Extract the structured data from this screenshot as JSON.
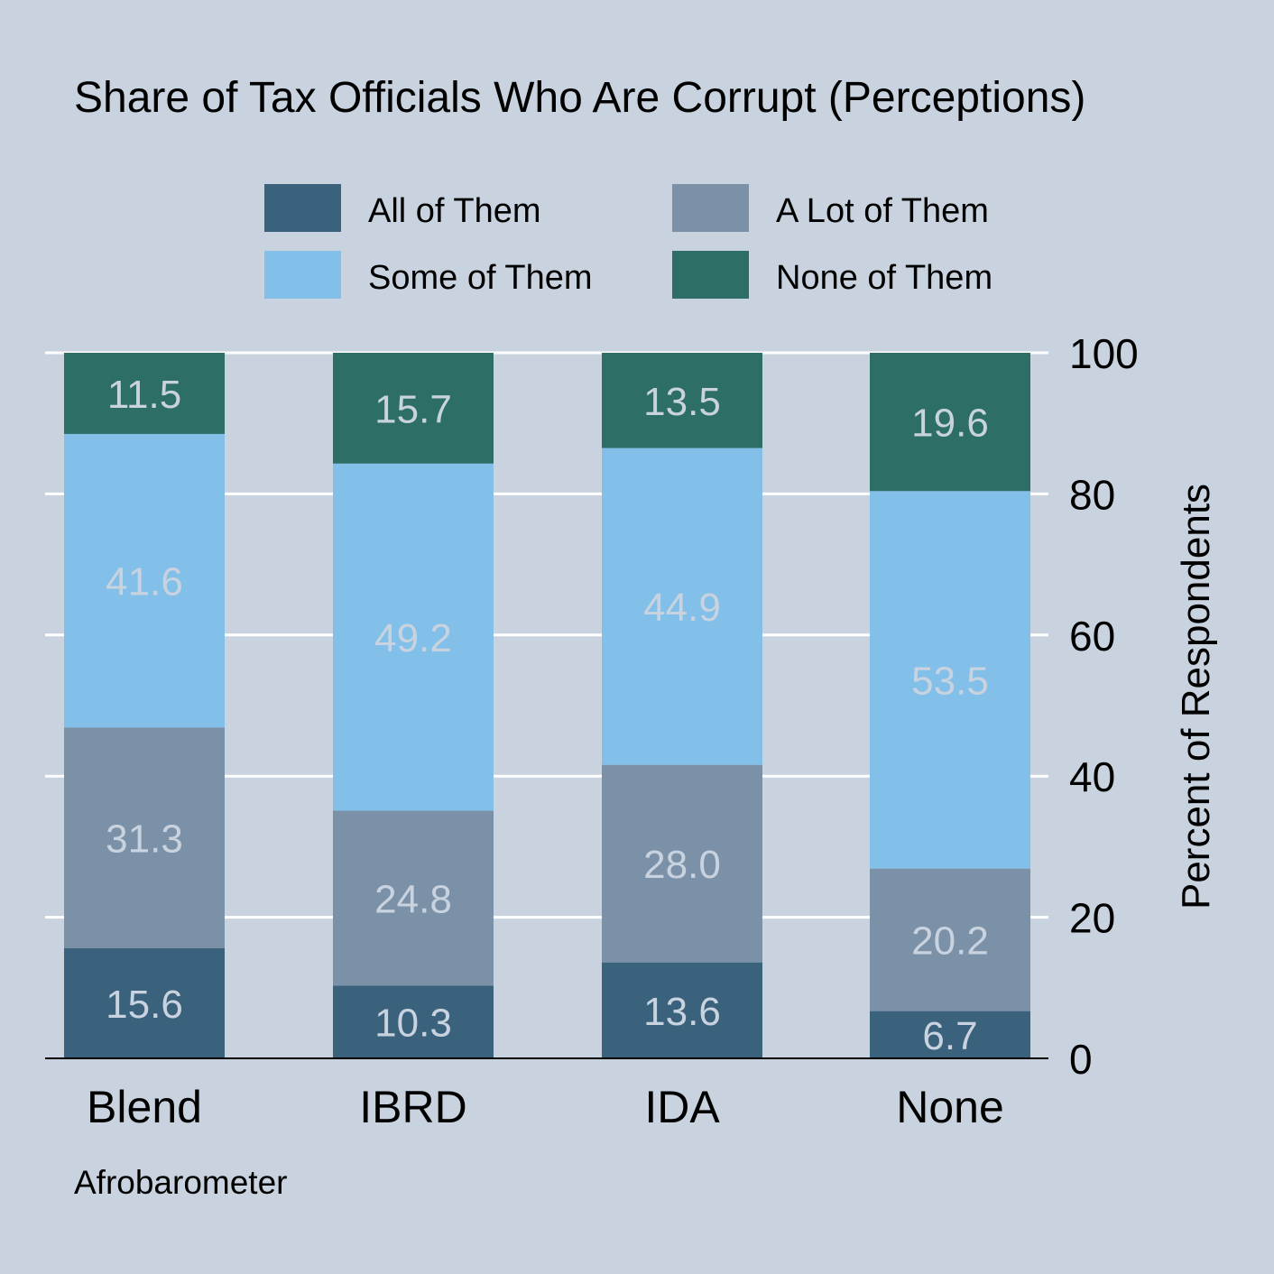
{
  "chart_data": {
    "type": "bar",
    "stacked": true,
    "title": "Share of Tax Officials Who Are Corrupt (Perceptions)",
    "xlabel": "",
    "ylabel": "Percent of Respondents",
    "caption": "Afrobarometer",
    "categories": [
      "Blend",
      "IBRD",
      "IDA",
      "None"
    ],
    "ylim": [
      0,
      100
    ],
    "yticks": [
      "0",
      "20",
      "40",
      "60",
      "80",
      "100"
    ],
    "y_axis_position": "right",
    "grid": true,
    "legend_position": "top",
    "series": [
      {
        "name": "All of Them",
        "color": "#3b627d",
        "values": [
          15.6,
          10.3,
          13.6,
          6.7
        ],
        "labels": [
          "15.6",
          "10.3",
          "13.6",
          "6.7"
        ]
      },
      {
        "name": "A Lot of Them",
        "color": "#7b91a8",
        "values": [
          31.3,
          24.8,
          28.0,
          20.2
        ],
        "labels": [
          "31.3",
          "24.8",
          "28.0",
          "20.2"
        ]
      },
      {
        "name": "Some of Them",
        "color": "#82bfe9",
        "values": [
          41.6,
          49.2,
          44.9,
          53.5
        ],
        "labels": [
          "41.6",
          "49.2",
          "44.9",
          "53.5"
        ]
      },
      {
        "name": "None of Them",
        "color": "#2d6e66",
        "values": [
          11.5,
          15.7,
          13.5,
          19.6
        ],
        "labels": [
          "11.5",
          "15.7",
          "13.5",
          "19.6"
        ]
      }
    ],
    "data_label_color": "#c8d3df",
    "gridline_color": "#ffffff",
    "background_color": "#c8d3df"
  }
}
